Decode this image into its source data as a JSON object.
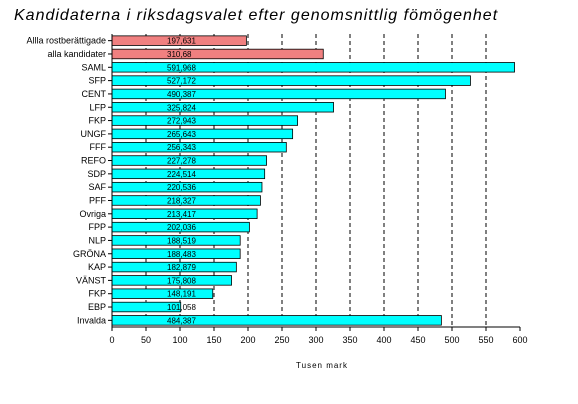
{
  "chart_data": {
    "type": "bar",
    "orientation": "horizontal",
    "title": "Kandidaterna i riksdagsvalet efter genomsnittlig fömögenhet",
    "xlabel": "Tusen mark",
    "ylabel": "",
    "xlim": [
      0,
      600
    ],
    "xticks": [
      0,
      50,
      100,
      150,
      200,
      250,
      300,
      350,
      400,
      450,
      500,
      550,
      600
    ],
    "grid": "vertical dashed",
    "categories": [
      "Allla rostberättigade",
      "alla kandidater",
      "SAML",
      "SFP",
      "CENT",
      "LFP",
      "FKP",
      "UNGF",
      "FFF",
      "REFO",
      "SDP",
      "SAF",
      "PFF",
      "Ovriga",
      "FPP",
      "NLP",
      "GRÖNA",
      "KAP",
      "VÄNST",
      "FKP",
      "EBP",
      "Invalda"
    ],
    "values": [
      197.631,
      310.68,
      591.968,
      527.172,
      490.387,
      325.824,
      272.943,
      265.643,
      256.343,
      227.278,
      224.514,
      220.536,
      218.327,
      213.417,
      202.036,
      188.519,
      188.483,
      182.879,
      175.808,
      148.191,
      101.058,
      484.387
    ],
    "labels": [
      "197,631",
      "310,68",
      "591,968",
      "527,172",
      "490,387",
      "325,824",
      "272,943",
      "265,643",
      "256,343",
      "227,278",
      "224,514",
      "220,536",
      "218,327",
      "213,417",
      "202,036",
      "188,519",
      "188,483",
      "182,879",
      "175,808",
      "148,191",
      "101,058",
      "484,387"
    ],
    "colors": [
      "#f08080",
      "#f08080",
      "#00ffff",
      "#00ffff",
      "#00ffff",
      "#00ffff",
      "#00ffff",
      "#00ffff",
      "#00ffff",
      "#00ffff",
      "#00ffff",
      "#00ffff",
      "#00ffff",
      "#00ffff",
      "#00ffff",
      "#00ffff",
      "#00ffff",
      "#00ffff",
      "#00ffff",
      "#00ffff",
      "#00ffff",
      "#00ffff"
    ]
  }
}
